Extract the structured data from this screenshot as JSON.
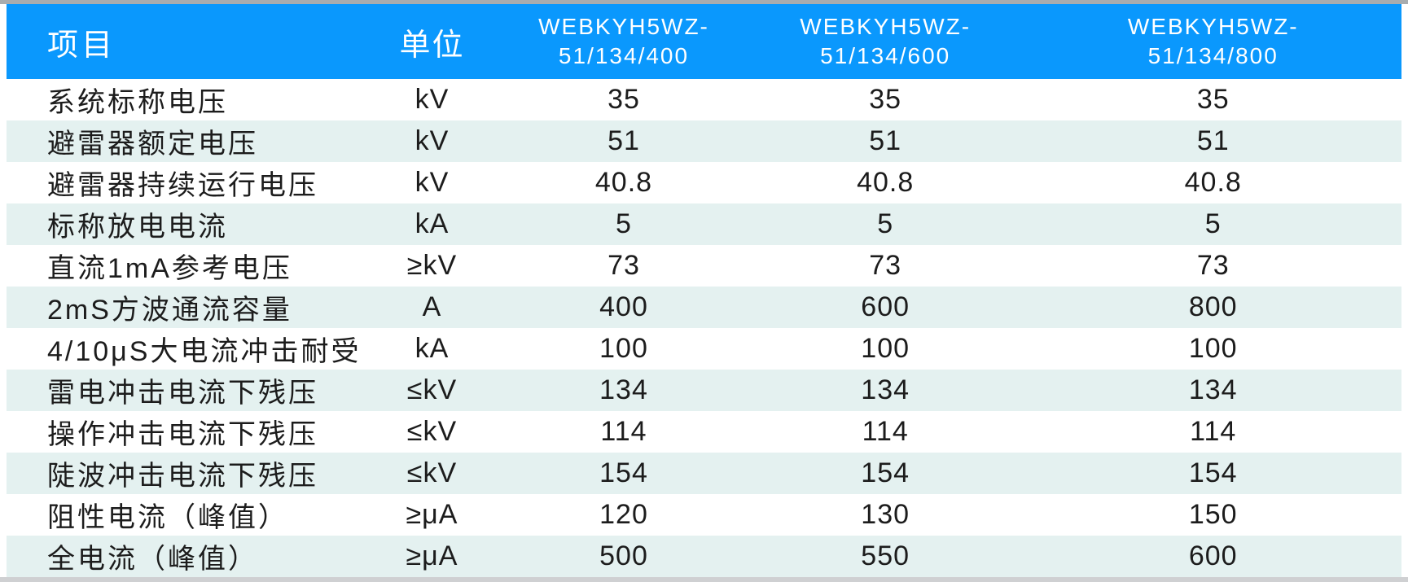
{
  "colors": {
    "header_bg": "#0a98fd",
    "header_text": "#ffffff",
    "stripe_bg": "#e4f1f0",
    "row_bg": "#ffffff",
    "body_text": "#1c1c1c",
    "top_bar": "#a8acaf",
    "bottom_bar": "#cfd0d2"
  },
  "table": {
    "columns": [
      {
        "key": "item",
        "label": "项目"
      },
      {
        "key": "unit",
        "label": "单位"
      },
      {
        "key": "model1",
        "label": "WEBKYH5WZ-51/134/400",
        "lines": [
          "WEBKYH5WZ-",
          "51/134/400"
        ]
      },
      {
        "key": "model2",
        "label": "WEBKYH5WZ-51/134/600",
        "lines": [
          "WEBKYH5WZ-",
          "51/134/600"
        ]
      },
      {
        "key": "model3",
        "label": "WEBKYH5WZ-51/134/800",
        "lines": [
          "WEBKYH5WZ-",
          "51/134/800"
        ]
      }
    ],
    "rows": [
      {
        "item": "系统标称电压",
        "unit": "kV",
        "values": [
          "35",
          "35",
          "35"
        ]
      },
      {
        "item": "避雷器额定电压",
        "unit": "kV",
        "values": [
          "51",
          "51",
          "51"
        ]
      },
      {
        "item": "避雷器持续运行电压",
        "unit": "kV",
        "values": [
          "40.8",
          "40.8",
          "40.8"
        ]
      },
      {
        "item": "标称放电电流",
        "unit": "kA",
        "values": [
          "5",
          "5",
          "5"
        ]
      },
      {
        "item": "直流1mA参考电压",
        "unit": "≥kV",
        "values": [
          "73",
          "73",
          "73"
        ]
      },
      {
        "item": "2mS方波通流容量",
        "unit": "A",
        "values": [
          "400",
          "600",
          "800"
        ]
      },
      {
        "item": "4/10μS大电流冲击耐受",
        "unit": "kA",
        "values": [
          "100",
          "100",
          "100"
        ]
      },
      {
        "item": "雷电冲击电流下残压",
        "unit": "≤kV",
        "values": [
          "134",
          "134",
          "134"
        ]
      },
      {
        "item": "操作冲击电流下残压",
        "unit": "≤kV",
        "values": [
          "114",
          "114",
          "114"
        ]
      },
      {
        "item": "陡波冲击电流下残压",
        "unit": "≤kV",
        "values": [
          "154",
          "154",
          "154"
        ]
      },
      {
        "item": "阻性电流（峰值）",
        "unit": "≥μA",
        "values": [
          "120",
          "130",
          "150"
        ]
      },
      {
        "item": "全电流（峰值）",
        "unit": "≥μA",
        "values": [
          "500",
          "550",
          "600"
        ]
      }
    ]
  }
}
